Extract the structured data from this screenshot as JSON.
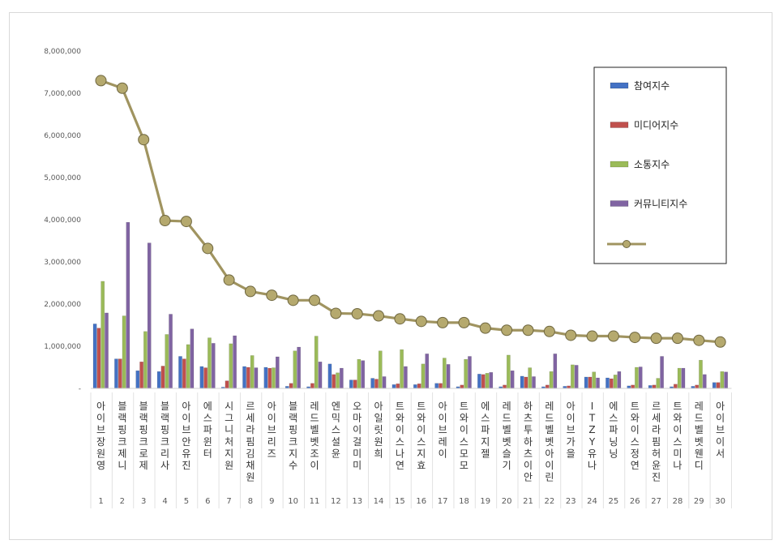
{
  "chart_data": {
    "type": "bar",
    "ylim": [
      0,
      8000000
    ],
    "yticks": [
      "-",
      "1,000,000",
      "2,000,000",
      "3,000,000",
      "4,000,000",
      "5,000,000",
      "6,000,000",
      "7,000,000",
      "8,000,000"
    ],
    "grid": false,
    "legend_position": "top-right",
    "categories": [
      "아이브 장원영",
      "블랙핑크 제니",
      "블랙핑크 로제",
      "블랙핑크 리사",
      "아이브 안유진",
      "에스파 윈터",
      "시그니처 지원",
      "르세라핌 김채원",
      "아이브 리즈",
      "블랙핑크 지수",
      "레드벨벳 조이",
      "엔믹스 설윤",
      "오마이걸 미미",
      "아일릿 원희",
      "트와이스 나연",
      "트와이스 지효",
      "아이브 레이",
      "트와이스 모모",
      "에스파 지젤",
      "레드벨벳 슬기",
      "하츠투하츠 이안",
      "레드벨벳 아이린",
      "아이브 가을",
      "ITZY 유나",
      "에스파 닝닝",
      "트와이스 정연",
      "르세라핌 허윤진",
      "트와이스 미나",
      "레드벨벳 웬디",
      "아이브 이서"
    ],
    "ranks": [
      "1",
      "2",
      "3",
      "4",
      "5",
      "6",
      "7",
      "8",
      "9",
      "10",
      "11",
      "12",
      "13",
      "14",
      "15",
      "16",
      "17",
      "18",
      "19",
      "20",
      "21",
      "22",
      "23",
      "24",
      "25",
      "26",
      "27",
      "28",
      "29",
      "30"
    ],
    "series": [
      {
        "name": "참여지수",
        "color": "#4472c4",
        "values": [
          1530000,
          700000,
          420000,
          400000,
          760000,
          520000,
          30000,
          520000,
          500000,
          50000,
          40000,
          580000,
          200000,
          240000,
          90000,
          90000,
          120000,
          40000,
          340000,
          40000,
          290000,
          40000,
          50000,
          270000,
          250000,
          60000,
          70000,
          40000,
          50000,
          140000
        ]
      },
      {
        "name": "미디어지수",
        "color": "#c0504d",
        "values": [
          1430000,
          700000,
          630000,
          530000,
          700000,
          490000,
          180000,
          500000,
          480000,
          120000,
          120000,
          330000,
          200000,
          220000,
          110000,
          110000,
          120000,
          80000,
          330000,
          80000,
          270000,
          80000,
          60000,
          270000,
          230000,
          80000,
          80000,
          100000,
          80000,
          140000
        ]
      },
      {
        "name": "소통지수",
        "color": "#9bbb59",
        "values": [
          2540000,
          1720000,
          1350000,
          1280000,
          1040000,
          1200000,
          1060000,
          780000,
          490000,
          890000,
          1240000,
          370000,
          690000,
          890000,
          920000,
          580000,
          720000,
          690000,
          360000,
          790000,
          490000,
          400000,
          560000,
          390000,
          320000,
          500000,
          240000,
          480000,
          670000,
          400000
        ]
      },
      {
        "name": "커뮤니티지수",
        "color": "#8064a2",
        "values": [
          1790000,
          3940000,
          3450000,
          1760000,
          1410000,
          1070000,
          1250000,
          490000,
          750000,
          980000,
          630000,
          480000,
          660000,
          280000,
          520000,
          820000,
          570000,
          760000,
          380000,
          420000,
          280000,
          820000,
          550000,
          250000,
          400000,
          510000,
          760000,
          480000,
          330000,
          390000
        ]
      }
    ],
    "line": {
      "name": "",
      "color": "#a09460",
      "values": [
        7300000,
        7120000,
        5900000,
        3980000,
        3960000,
        3320000,
        2570000,
        2300000,
        2210000,
        2090000,
        2090000,
        1780000,
        1770000,
        1720000,
        1650000,
        1590000,
        1560000,
        1560000,
        1430000,
        1380000,
        1380000,
        1350000,
        1260000,
        1240000,
        1240000,
        1210000,
        1190000,
        1190000,
        1140000,
        1100000
      ]
    }
  }
}
